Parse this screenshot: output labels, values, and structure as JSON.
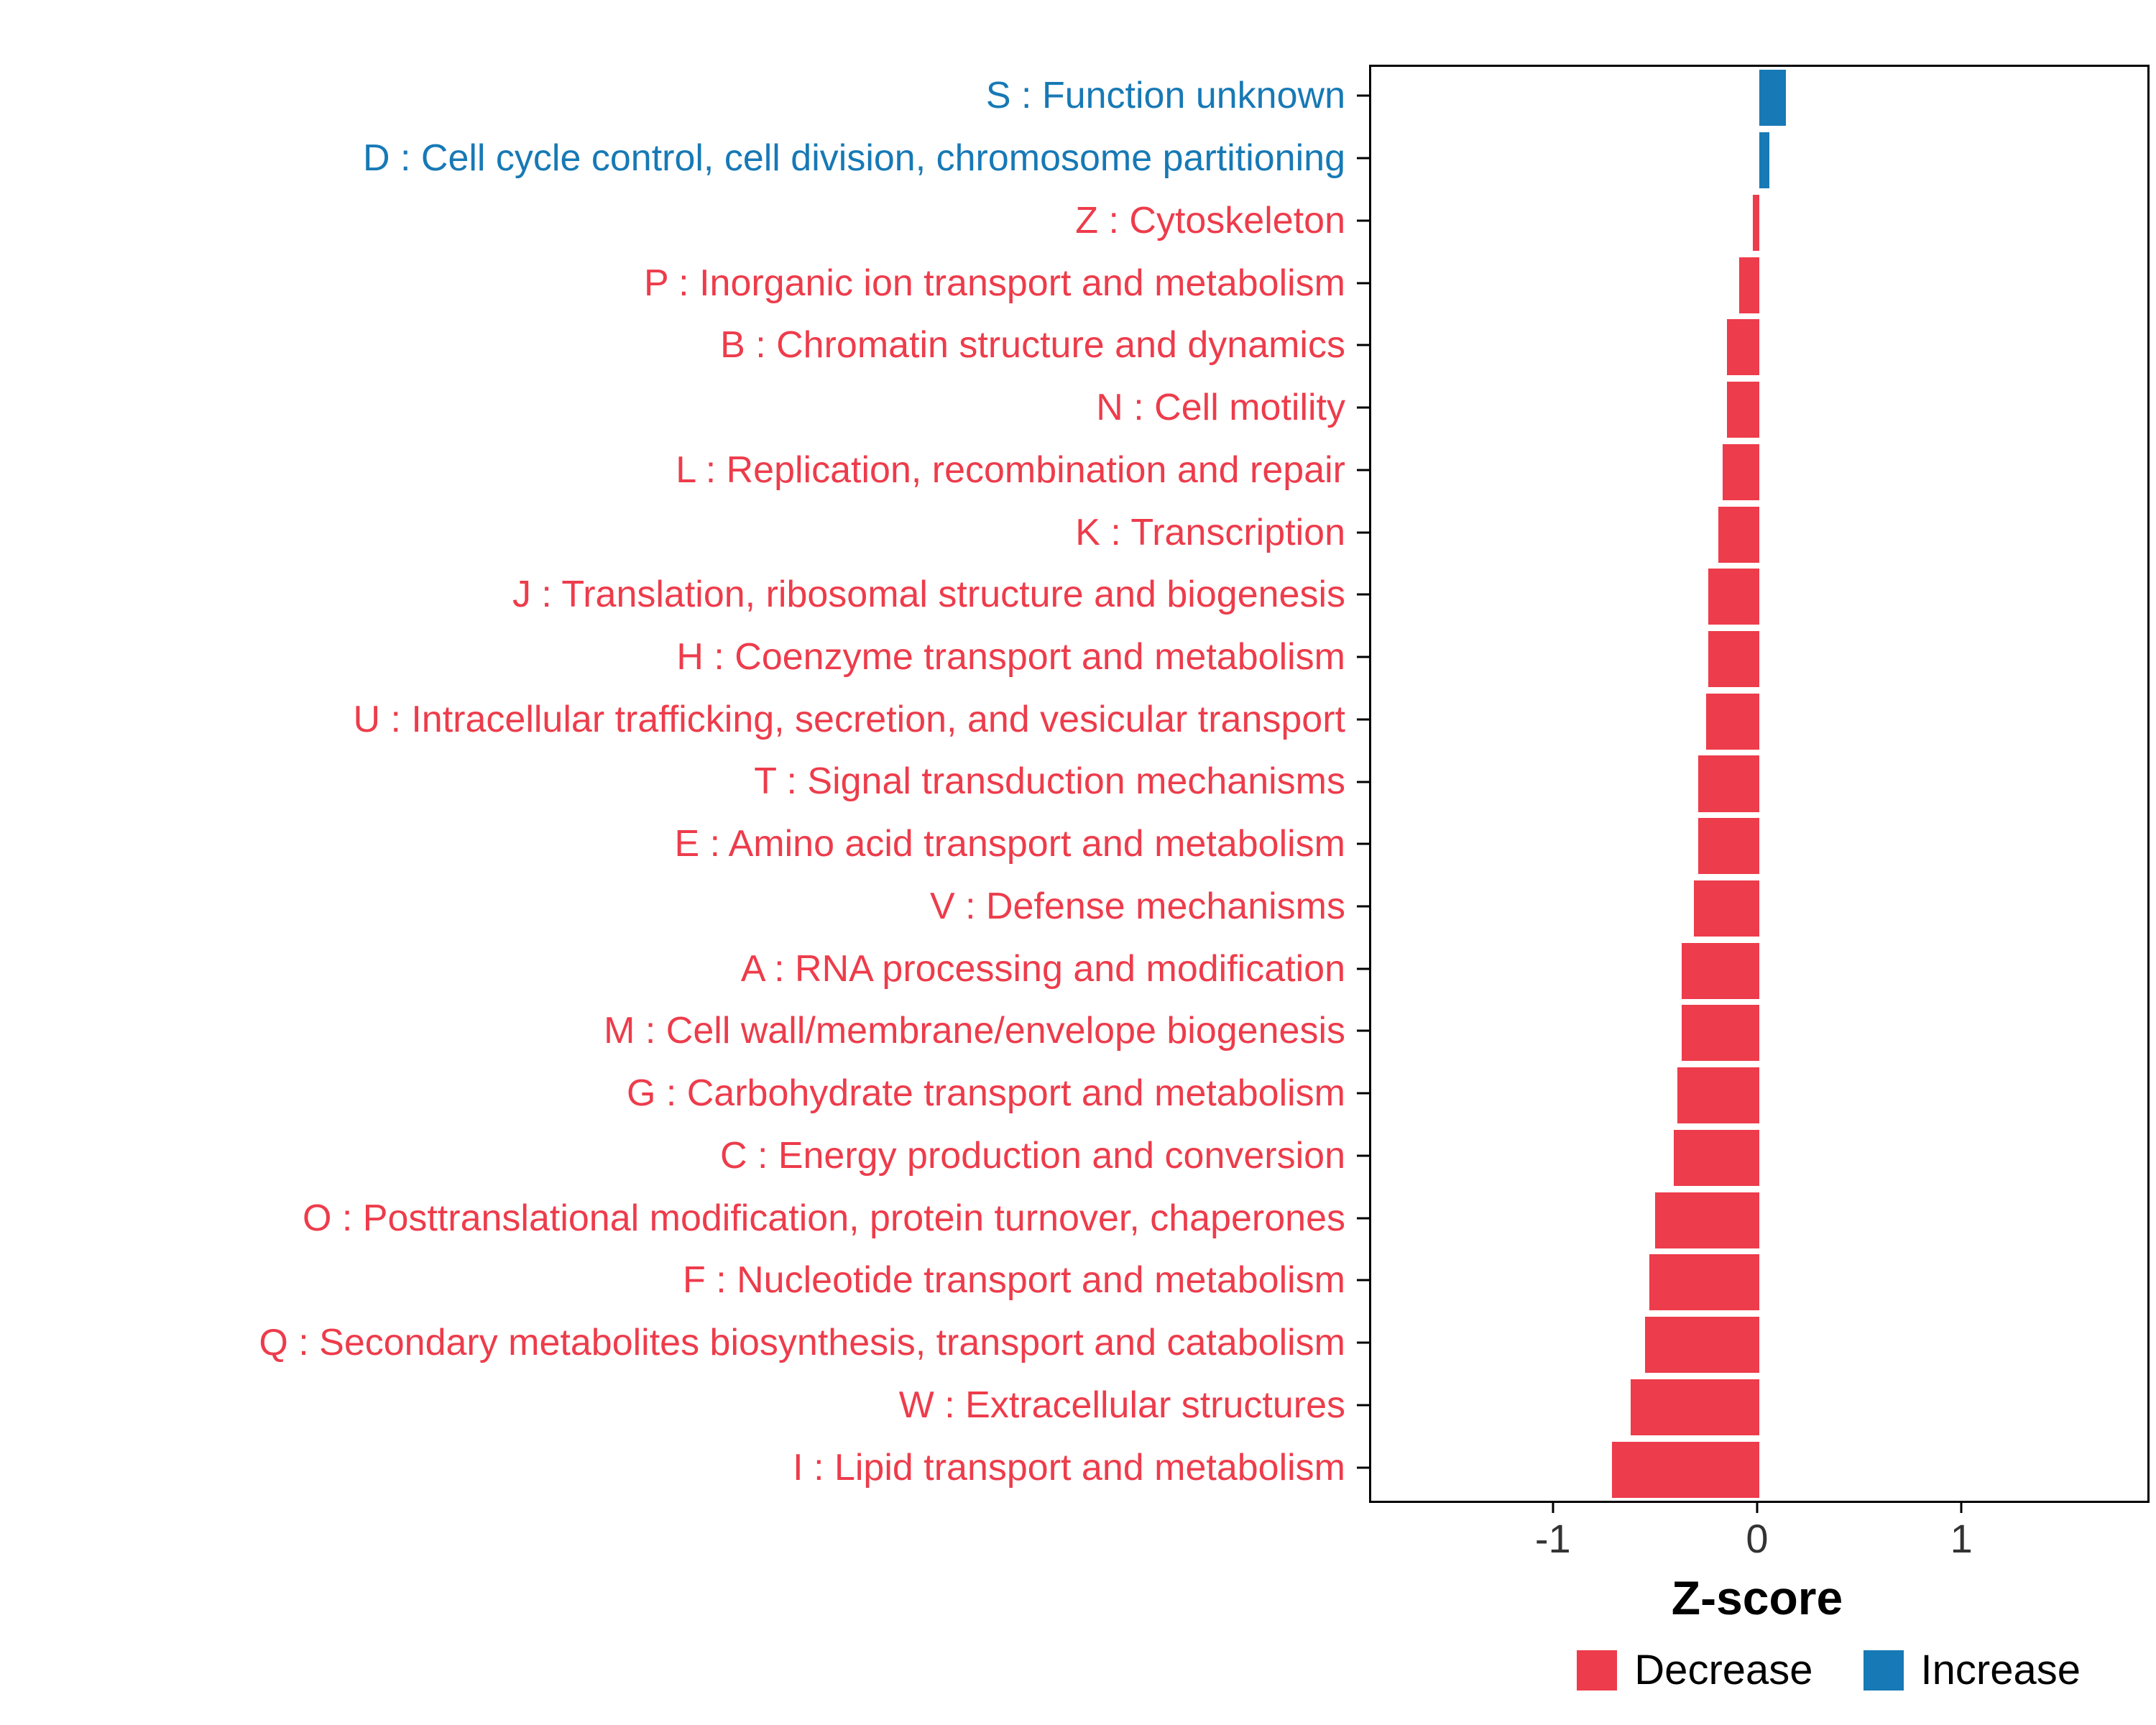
{
  "chart_data": {
    "type": "bar",
    "orientation": "horizontal",
    "title": "",
    "xlabel": "Z-score",
    "xlim": [
      -1.9,
      1.9
    ],
    "xticks": [
      -1,
      0,
      1
    ],
    "grid": false,
    "legend_position": "bottom-right",
    "categories": [
      "S : Function unknown",
      "D : Cell cycle control, cell division, chromosome partitioning",
      "Z : Cytoskeleton",
      "P : Inorganic ion transport and metabolism",
      "B : Chromatin structure and dynamics",
      "N : Cell motility",
      "L : Replication, recombination and repair",
      "K : Transcription",
      "J : Translation, ribosomal structure and biogenesis",
      "H : Coenzyme transport and metabolism",
      "U : Intracellular trafficking, secretion, and vesicular transport",
      "T : Signal transduction mechanisms",
      "E : Amino acid transport and metabolism",
      "V : Defense mechanisms",
      "A : RNA processing and modification",
      "M : Cell wall/membrane/envelope biogenesis",
      "G : Carbohydrate transport and metabolism",
      "C : Energy production and conversion",
      "O : Posttranslational modification, protein turnover, chaperones",
      "F : Nucleotide transport and metabolism",
      "Q : Secondary metabolites biosynthesis, transport and catabolism",
      "W : Extracellular structures",
      "I : Lipid transport and metabolism"
    ],
    "values": [
      0.13,
      0.05,
      -0.03,
      -0.1,
      -0.16,
      -0.16,
      -0.18,
      -0.2,
      -0.25,
      -0.25,
      -0.26,
      -0.3,
      -0.3,
      -0.32,
      -0.38,
      -0.38,
      -0.4,
      -0.42,
      -0.51,
      -0.54,
      -0.56,
      -0.63,
      -0.72
    ],
    "directions": [
      "Increase",
      "Increase",
      "Decrease",
      "Decrease",
      "Decrease",
      "Decrease",
      "Decrease",
      "Decrease",
      "Decrease",
      "Decrease",
      "Decrease",
      "Decrease",
      "Decrease",
      "Decrease",
      "Decrease",
      "Decrease",
      "Decrease",
      "Decrease",
      "Decrease",
      "Decrease",
      "Decrease",
      "Decrease",
      "Decrease"
    ],
    "colors": {
      "Decrease": "#ED3C4B",
      "Increase": "#1779B5"
    },
    "legend": [
      {
        "label": "Decrease",
        "color": "#ED3C4B"
      },
      {
        "label": "Increase",
        "color": "#1779B5"
      }
    ]
  }
}
